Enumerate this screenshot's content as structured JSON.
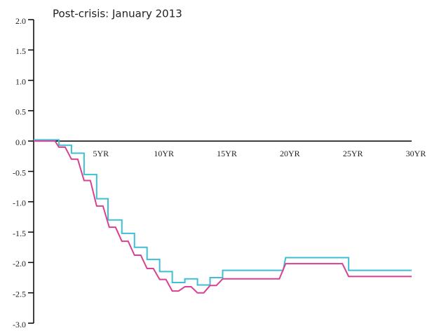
{
  "chart_data": {
    "type": "line",
    "title": "Post-crisis: January 2013",
    "xlim": [
      0,
      30
    ],
    "ylim": [
      -3,
      2
    ],
    "xticks": [
      {
        "value": 5,
        "label": "5YR"
      },
      {
        "value": 10,
        "label": "10YR"
      },
      {
        "value": 15,
        "label": "15YR"
      },
      {
        "value": 20,
        "label": "20YR"
      },
      {
        "value": 25,
        "label": "25YR"
      },
      {
        "value": 30,
        "label": "30YR"
      }
    ],
    "yticks": [
      {
        "value": 2,
        "label": "2.0"
      },
      1.5,
      {
        "value": 1,
        "label": "1.0"
      },
      0.5,
      {
        "value": 0,
        "label": "0.0"
      },
      -0.5,
      {
        "value": -1,
        "label": "-1.0"
      },
      -1.5,
      {
        "value": -2,
        "label": "-2.0"
      },
      -2.5,
      {
        "value": -3,
        "label": "-3.0"
      }
    ],
    "series": [
      {
        "color": "#3fbfd6",
        "x": [
          0,
          2,
          2,
          3,
          3,
          4,
          4,
          5,
          5,
          5.9,
          5.9,
          7,
          7,
          8,
          8,
          9,
          9,
          10,
          10,
          11,
          11,
          12,
          12,
          13,
          13,
          14,
          14,
          15,
          15,
          19.8,
          20,
          25,
          25,
          30
        ],
        "values": [
          0.02,
          0.02,
          -0.07,
          -0.07,
          -0.2,
          -0.2,
          -0.55,
          -0.55,
          -0.95,
          -0.95,
          -1.3,
          -1.3,
          -1.52,
          -1.52,
          -1.75,
          -1.75,
          -1.95,
          -1.95,
          -2.15,
          -2.15,
          -2.33,
          -2.33,
          -2.27,
          -2.27,
          -2.37,
          -2.37,
          -2.25,
          -2.25,
          -2.13,
          -2.13,
          -1.92,
          -1.92,
          -2.13,
          -2.13
        ]
      },
      {
        "color": "#d9418f",
        "x": [
          0,
          1.7,
          2,
          2.5,
          3,
          3.5,
          4,
          4.5,
          5,
          5.5,
          6,
          6.5,
          7,
          7.5,
          8,
          8.5,
          9,
          9.5,
          10,
          10.5,
          11,
          11.5,
          12,
          12.5,
          13,
          13.5,
          14,
          14.5,
          15,
          19.5,
          20,
          24.5,
          25,
          30
        ],
        "values": [
          0,
          0,
          -0.1,
          -0.1,
          -0.3,
          -0.3,
          -0.65,
          -0.65,
          -1.07,
          -1.07,
          -1.42,
          -1.42,
          -1.65,
          -1.65,
          -1.88,
          -1.88,
          -2.1,
          -2.1,
          -2.28,
          -2.28,
          -2.47,
          -2.47,
          -2.4,
          -2.4,
          -2.5,
          -2.5,
          -2.38,
          -2.38,
          -2.27,
          -2.27,
          -2.02,
          -2.02,
          -2.23,
          -2.23
        ]
      }
    ]
  }
}
